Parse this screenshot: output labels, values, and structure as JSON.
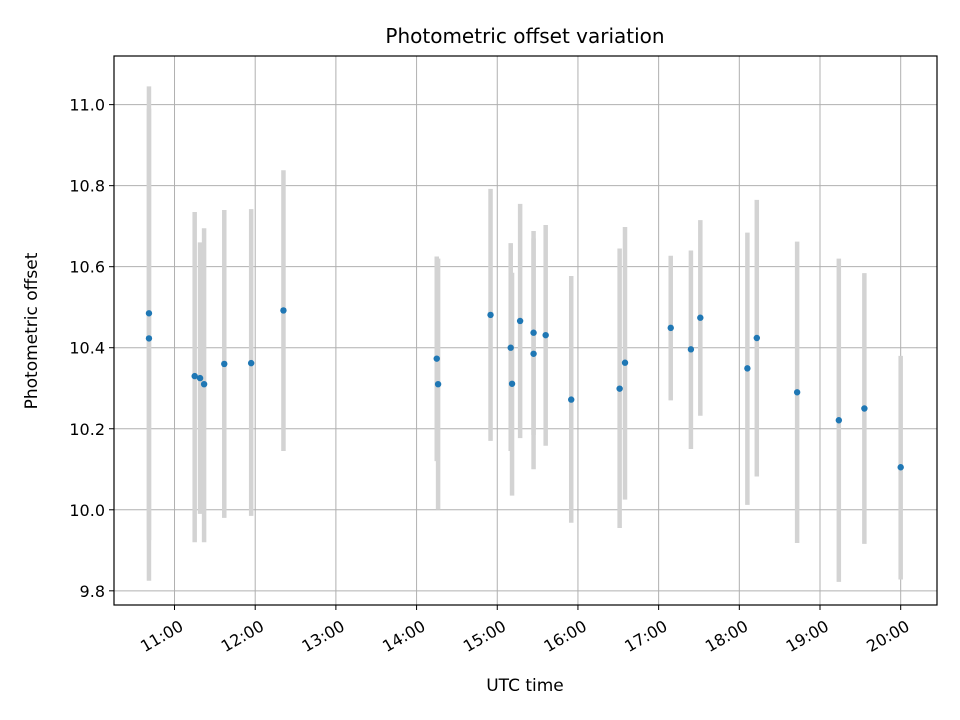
{
  "chart_data": {
    "type": "scatter",
    "title": "Photometric offset variation",
    "xlabel": "UTC time",
    "ylabel": "Photometric offset",
    "xlim": [
      "10:15",
      "20:27"
    ],
    "ylim": [
      9.765,
      11.12
    ],
    "x_ticks": [
      "11:00",
      "12:00",
      "13:00",
      "14:00",
      "15:00",
      "16:00",
      "17:00",
      "18:00",
      "19:00",
      "20:00"
    ],
    "y_ticks": [
      "9.8",
      "10.0",
      "10.2",
      "10.4",
      "10.6",
      "10.8",
      "11.0"
    ],
    "grid": true,
    "colors": {
      "points": "#1f77b4",
      "error_bars": "#d3d3d3",
      "grid": "#b0b0b0"
    },
    "points": [
      {
        "t": "10:41",
        "y": 10.485,
        "lo": 9.925,
        "hi": 11.045
      },
      {
        "t": "10:41",
        "y": 10.423,
        "lo": 9.825,
        "hi": 10.99
      },
      {
        "t": "11:15",
        "y": 10.33,
        "lo": 9.92,
        "hi": 10.735
      },
      {
        "t": "11:19",
        "y": 10.325,
        "lo": 9.99,
        "hi": 10.66
      },
      {
        "t": "11:22",
        "y": 10.31,
        "lo": 9.92,
        "hi": 10.695
      },
      {
        "t": "11:37",
        "y": 10.36,
        "lo": 9.98,
        "hi": 10.74
      },
      {
        "t": "11:57",
        "y": 10.362,
        "lo": 9.985,
        "hi": 10.742
      },
      {
        "t": "12:21",
        "y": 10.492,
        "lo": 10.145,
        "hi": 10.838
      },
      {
        "t": "14:15",
        "y": 10.373,
        "lo": 10.12,
        "hi": 10.625
      },
      {
        "t": "14:16",
        "y": 10.31,
        "lo": 10.0,
        "hi": 10.62
      },
      {
        "t": "14:55",
        "y": 10.481,
        "lo": 10.17,
        "hi": 10.792
      },
      {
        "t": "15:10",
        "y": 10.4,
        "lo": 10.145,
        "hi": 10.658
      },
      {
        "t": "15:11",
        "y": 10.311,
        "lo": 10.035,
        "hi": 10.585
      },
      {
        "t": "15:17",
        "y": 10.466,
        "lo": 10.177,
        "hi": 10.755
      },
      {
        "t": "15:27",
        "y": 10.437,
        "lo": 10.185,
        "hi": 10.688
      },
      {
        "t": "15:27",
        "y": 10.385,
        "lo": 10.1,
        "hi": 10.67
      },
      {
        "t": "15:36",
        "y": 10.431,
        "lo": 10.158,
        "hi": 10.703
      },
      {
        "t": "15:55",
        "y": 10.272,
        "lo": 9.968,
        "hi": 10.577
      },
      {
        "t": "16:31",
        "y": 10.299,
        "lo": 9.955,
        "hi": 10.645
      },
      {
        "t": "16:35",
        "y": 10.363,
        "lo": 10.025,
        "hi": 10.698
      },
      {
        "t": "17:09",
        "y": 10.449,
        "lo": 10.27,
        "hi": 10.627
      },
      {
        "t": "17:24",
        "y": 10.396,
        "lo": 10.15,
        "hi": 10.64
      },
      {
        "t": "17:31",
        "y": 10.474,
        "lo": 10.232,
        "hi": 10.715
      },
      {
        "t": "18:06",
        "y": 10.349,
        "lo": 10.012,
        "hi": 10.684
      },
      {
        "t": "18:13",
        "y": 10.424,
        "lo": 10.082,
        "hi": 10.765
      },
      {
        "t": "18:43",
        "y": 10.29,
        "lo": 9.918,
        "hi": 10.662
      },
      {
        "t": "19:14",
        "y": 10.221,
        "lo": 9.822,
        "hi": 10.62
      },
      {
        "t": "19:33",
        "y": 10.25,
        "lo": 9.916,
        "hi": 10.584
      },
      {
        "t": "20:00",
        "y": 10.105,
        "lo": 9.828,
        "hi": 10.38
      }
    ]
  }
}
